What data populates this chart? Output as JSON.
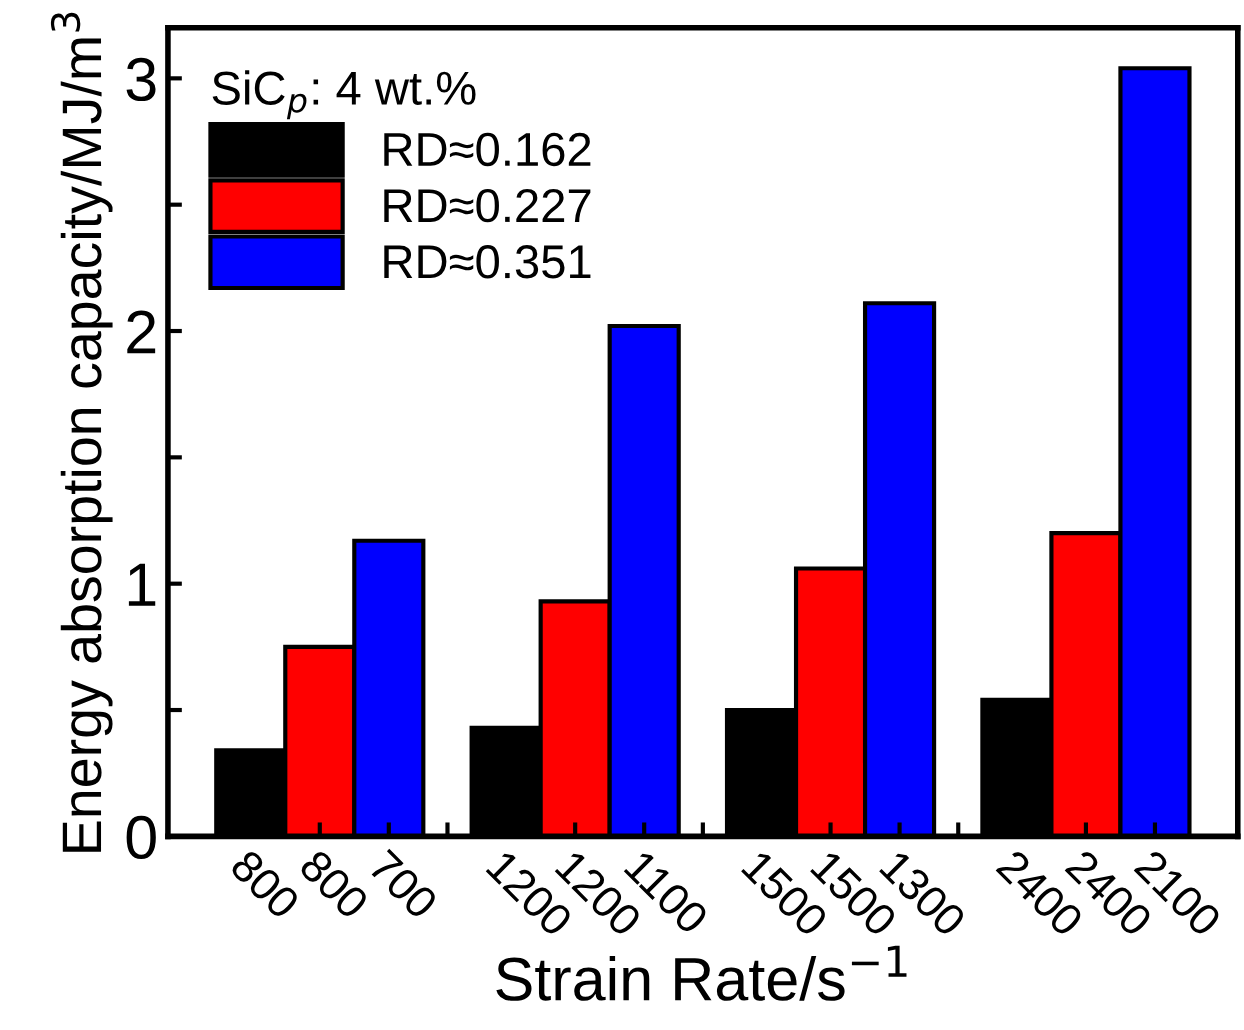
{
  "chart_data": {
    "type": "bar",
    "xlabel": "Strain Rate/s$^{−1}$",
    "ylabel": "Energy absorption capacity/MJ/m$^{3}$",
    "legend_title": "SiC$_{p}$: 4 wt.%",
    "categories": [
      "800",
      "800",
      "700",
      null,
      "1200",
      "1200",
      "1100",
      null,
      "1500",
      "1500",
      "1300",
      null,
      "2400",
      "2400",
      "2100"
    ],
    "series": [
      {
        "name": "RD≈0.162",
        "color": "#000000",
        "values": [
          0.34,
          null,
          null,
          null,
          0.43,
          null,
          null,
          null,
          0.5,
          null,
          null,
          null,
          0.54,
          null,
          null
        ]
      },
      {
        "name": "RD≈0.227",
        "color": "#ff0000",
        "values": [
          null,
          0.75,
          null,
          null,
          null,
          0.93,
          null,
          null,
          null,
          1.06,
          null,
          null,
          null,
          1.2,
          null
        ]
      },
      {
        "name": "RD≈0.351",
        "color": "#0000ff",
        "values": [
          null,
          null,
          1.17,
          null,
          null,
          null,
          2.02,
          null,
          null,
          null,
          2.11,
          null,
          null,
          null,
          3.04
        ]
      }
    ],
    "ylim": [
      0,
      3.2
    ],
    "yticks": [
      0,
      {
        "value": 0.5,
        "label": null
      },
      1,
      {
        "value": 1.5,
        "label": null
      },
      2,
      {
        "value": 2.5,
        "label": null
      },
      3
    ],
    "legend": "top left",
    "grid": false
  }
}
